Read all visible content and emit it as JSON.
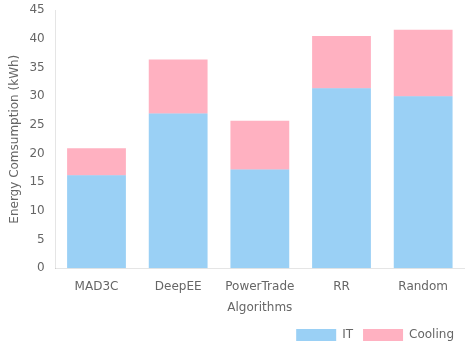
{
  "chart_data": {
    "type": "bar",
    "stacked": true,
    "categories": [
      "MAD3C",
      "DeepEE",
      "PowerTrade",
      "RR",
      "Random"
    ],
    "series": [
      {
        "name": "IT",
        "values": [
          16.2,
          27.0,
          17.2,
          31.4,
          30.0
        ]
      },
      {
        "name": "Cooling",
        "values": [
          4.7,
          9.4,
          8.5,
          9.1,
          11.6
        ]
      }
    ],
    "xlabel": "Algorithms",
    "ylabel": "Energy Comsumption (kWh)",
    "ylim": [
      0,
      45
    ],
    "yticks": [
      0,
      5,
      10,
      15,
      20,
      25,
      30,
      35,
      40,
      45
    ],
    "grid": false,
    "legend": "lower right"
  }
}
